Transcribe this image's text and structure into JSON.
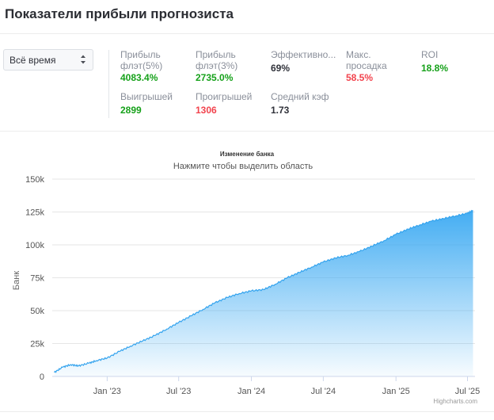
{
  "page": {
    "title": "Показатели прибыли прогнозиста"
  },
  "filter": {
    "selected": "Всё время"
  },
  "stats": {
    "row1": [
      {
        "label_line1": "Прибыль",
        "label_line2": "флэт(5%)",
        "value": "4083.4%",
        "color": "green"
      },
      {
        "label_line1": "Прибыль",
        "label_line2": "флэт(3%)",
        "value": "2735.0%",
        "color": "green"
      },
      {
        "label_line1": "Эффективно...",
        "label_line2": "",
        "value": "69%",
        "color": "dark"
      },
      {
        "label_line1": "Макс.",
        "label_line2": "просадка",
        "value": "58.5%",
        "color": "red"
      },
      {
        "label_line1": "ROI",
        "label_line2": "",
        "value": "18.8%",
        "color": "green"
      }
    ],
    "row2": [
      {
        "label": "Выигрышей",
        "value": "2899",
        "color": "green"
      },
      {
        "label": "Проигрышей",
        "value": "1306",
        "color": "red"
      },
      {
        "label": "Средний кэф",
        "value": "1.73",
        "color": "dark"
      }
    ]
  },
  "colors": {
    "green": "#16a11a",
    "red": "#f2434d",
    "dark": "#30323a",
    "series": "#3aa9f2"
  },
  "chart_data": {
    "type": "area",
    "title": "Изменение банка",
    "subtitle": "Нажмите чтобы выделить область",
    "ylabel": "Банк",
    "credits": "Highcharts.com",
    "ylim": [
      0,
      150000
    ],
    "y_ticks": [
      0,
      25000,
      50000,
      75000,
      100000,
      125000,
      150000
    ],
    "y_tick_labels": [
      "0",
      "25k",
      "50k",
      "75k",
      "100k",
      "125k",
      "150k"
    ],
    "xlim": [
      "2022-08-15",
      "2025-07-20"
    ],
    "x_ticks": [
      "2023-01-01",
      "2023-07-01",
      "2024-01-01",
      "2024-07-01",
      "2025-01-01",
      "2025-07-01"
    ],
    "x_tick_labels": [
      "Jan '23",
      "Jul '23",
      "Jan '24",
      "Jul '24",
      "Jan '25",
      "Jul '25"
    ],
    "grid": true,
    "legend": "none",
    "series": [
      {
        "x": [
          "2022-08-20",
          "2022-09-10",
          "2022-10-01",
          "2022-10-20",
          "2022-11-15",
          "2022-12-05",
          "2023-01-01",
          "2023-02-01",
          "2023-03-01",
          "2023-04-01",
          "2023-05-01",
          "2023-06-01",
          "2023-07-01",
          "2023-08-01",
          "2023-09-01",
          "2023-10-01",
          "2023-11-01",
          "2023-12-01",
          "2024-01-01",
          "2024-02-01",
          "2024-03-01",
          "2024-04-01",
          "2024-05-01",
          "2024-06-01",
          "2024-07-01",
          "2024-08-01",
          "2024-09-01",
          "2024-10-01",
          "2024-11-01",
          "2024-12-01",
          "2025-01-01",
          "2025-02-01",
          "2025-03-01",
          "2025-04-01",
          "2025-05-01",
          "2025-06-01",
          "2025-07-01",
          "2025-07-15"
        ],
        "values": [
          3000,
          7000,
          9000,
          8000,
          10000,
          12000,
          14000,
          19000,
          23000,
          27000,
          31000,
          36000,
          41000,
          46000,
          51000,
          56000,
          60000,
          63000,
          65000,
          66000,
          70000,
          75000,
          79000,
          83000,
          87000,
          90000,
          92000,
          95000,
          99000,
          103000,
          108000,
          112000,
          115000,
          118000,
          120000,
          122000,
          124000,
          126000
        ]
      }
    ]
  }
}
